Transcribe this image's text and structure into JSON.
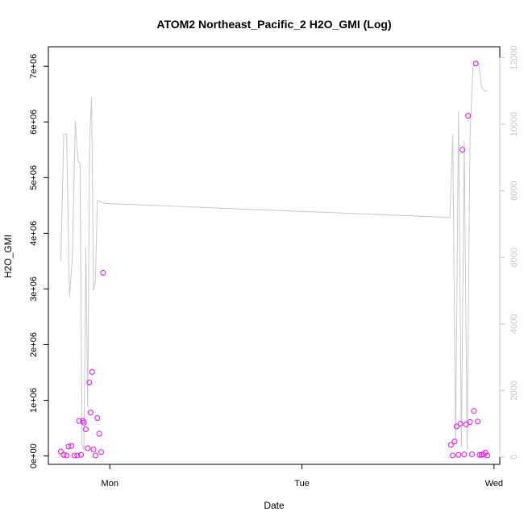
{
  "chart_data": {
    "type": "scatter",
    "title": "ATOM2 Northeast_Pacific_2 H2O_GMI (Log)",
    "xlabel": "Date",
    "ylabel": "H2O_GMI",
    "x_ticks": [
      {
        "value": 1.0,
        "label": "Mon"
      },
      {
        "value": 2.0,
        "label": "Tue"
      },
      {
        "value": 3.0,
        "label": "Wed"
      }
    ],
    "y_ticks": [
      {
        "value": 0,
        "label": "0e+00"
      },
      {
        "value": 1000000,
        "label": "1e+06"
      },
      {
        "value": 2000000,
        "label": "2e+06"
      },
      {
        "value": 3000000,
        "label": "3e+06"
      },
      {
        "value": 4000000,
        "label": "4e+06"
      },
      {
        "value": 5000000,
        "label": "5e+06"
      },
      {
        "value": 6000000,
        "label": "6e+06"
      },
      {
        "value": 7000000,
        "label": "7e+06"
      }
    ],
    "y2_ticks": [
      {
        "value": 0,
        "label": "0"
      },
      {
        "value": 2000,
        "label": "2000"
      },
      {
        "value": 4000,
        "label": "4000"
      },
      {
        "value": 6000,
        "label": "6000"
      },
      {
        "value": 8000,
        "label": "8000"
      },
      {
        "value": 10000,
        "label": "10000"
      },
      {
        "value": 12000,
        "label": "12000"
      }
    ],
    "xlim": [
      0.68,
      3.03
    ],
    "ylim": [
      -150000,
      7350000
    ],
    "y2lim": [
      -222,
      12330
    ],
    "colors": {
      "points": "#ff00ff",
      "line": "#c8c8c8"
    },
    "series": [
      {
        "role": "points",
        "x": [
          0.745,
          0.76,
          0.775,
          0.785,
          0.8,
          0.815,
          0.83,
          0.84,
          0.85,
          0.86,
          0.865,
          0.875,
          0.885,
          0.893,
          0.9,
          0.908,
          0.915,
          0.925,
          0.935,
          0.945,
          0.955,
          0.965,
          2.775,
          2.785,
          2.795,
          2.805,
          2.815,
          2.825,
          2.835,
          2.845,
          2.855,
          2.865,
          2.875,
          2.885,
          2.895,
          2.905,
          2.915,
          2.925,
          2.935,
          2.945,
          2.955,
          2.965
        ],
        "y": [
          80000,
          20000,
          10000,
          170000,
          180000,
          10000,
          10000,
          630000,
          20000,
          630000,
          600000,
          480000,
          140000,
          1320000,
          780000,
          1510000,
          120000,
          10000,
          680000,
          400000,
          70000,
          3290000,
          200000,
          10000,
          260000,
          530000,
          20000,
          580000,
          5500000,
          30000,
          570000,
          6110000,
          610000,
          30000,
          810000,
          7050000,
          620000,
          20000,
          20000,
          30000,
          60000,
          10000
        ]
      },
      {
        "role": "line",
        "x": [
          0.745,
          0.76,
          0.775,
          0.79,
          0.805,
          0.82,
          0.835,
          0.845,
          0.855,
          0.865,
          0.875,
          0.885,
          0.895,
          0.905,
          0.915,
          0.925,
          0.935,
          0.945,
          0.96,
          0.975,
          2.77,
          2.785,
          2.8,
          2.815,
          2.83,
          2.845,
          2.86,
          2.875,
          2.89,
          2.905,
          2.92,
          2.935,
          2.95,
          2.965
        ],
        "y": [
          5900,
          9700,
          9700,
          4800,
          6000,
          10100,
          8900,
          8800,
          400,
          200,
          6300,
          1500,
          9600,
          10800,
          5000,
          5300,
          7700,
          7700,
          7650,
          7620,
          7200,
          9700,
          400,
          10400,
          300,
          9500,
          200,
          9600,
          11700,
          11900,
          11800,
          11100,
          11000,
          11000
        ]
      }
    ]
  }
}
